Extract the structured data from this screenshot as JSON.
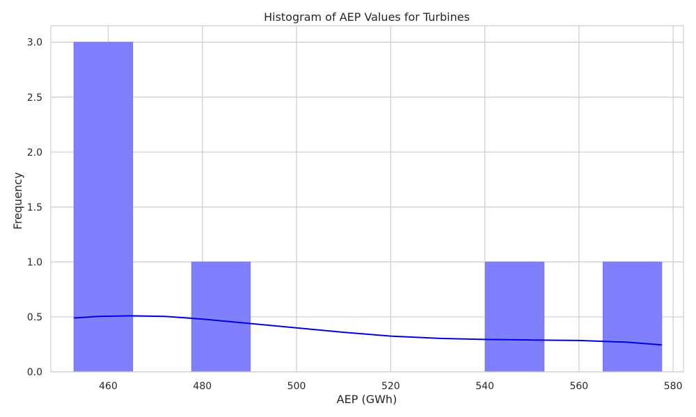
{
  "chart_data": {
    "type": "bar",
    "title": "Histogram of AEP Values for Turbines",
    "xlabel": "AEP (GWh)",
    "ylabel": "Frequency",
    "xlim": [
      447.8,
      582.2
    ],
    "ylim": [
      0,
      3.15
    ],
    "xticks": [
      460,
      480,
      500,
      520,
      540,
      560,
      580
    ],
    "xtick_labels": [
      "460",
      "480",
      "500",
      "520",
      "540",
      "560",
      "580"
    ],
    "yticks": [
      0.0,
      0.5,
      1.0,
      1.5,
      2.0,
      2.5,
      3.0
    ],
    "ytick_labels": [
      "0.0",
      "0.5",
      "1.0",
      "1.5",
      "2.0",
      "2.5",
      "3.0"
    ],
    "grid": true,
    "bins": [
      {
        "x0": 452.7,
        "x1": 465.2,
        "count": 3
      },
      {
        "x0": 465.2,
        "x1": 477.7,
        "count": 0
      },
      {
        "x0": 477.7,
        "x1": 490.2,
        "count": 1
      },
      {
        "x0": 490.2,
        "x1": 502.6,
        "count": 0
      },
      {
        "x0": 502.6,
        "x1": 515.1,
        "count": 0
      },
      {
        "x0": 515.1,
        "x1": 527.6,
        "count": 0
      },
      {
        "x0": 527.6,
        "x1": 540.1,
        "count": 0
      },
      {
        "x0": 540.1,
        "x1": 552.6,
        "count": 1
      },
      {
        "x0": 552.6,
        "x1": 565.1,
        "count": 0
      },
      {
        "x0": 565.1,
        "x1": 577.6,
        "count": 1
      }
    ],
    "kde": {
      "x": [
        452.7,
        458,
        465,
        472,
        480,
        490,
        500,
        510,
        520,
        530,
        540,
        550,
        560,
        570,
        577.6
      ],
      "y": [
        0.49,
        0.505,
        0.51,
        0.505,
        0.48,
        0.44,
        0.4,
        0.36,
        0.325,
        0.305,
        0.295,
        0.29,
        0.285,
        0.27,
        0.245
      ]
    },
    "colors": {
      "bar_fill": "#8080ff",
      "bar_stroke": "#7070e8",
      "kde_line": "#0000dd",
      "grid": "#cccccc",
      "axes": "#cccccc"
    }
  }
}
